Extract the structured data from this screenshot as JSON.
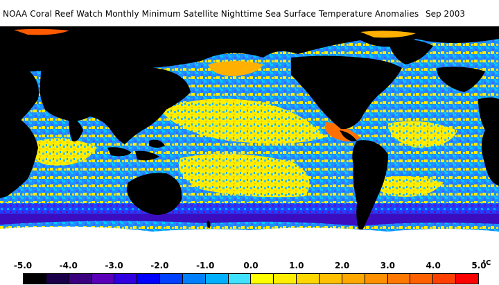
{
  "header": {
    "title": "NOAA Coral Reef Watch Monthly Minimum Satellite Nighttime Sea Surface Temperature Anomalies",
    "date": "Sep 2003"
  },
  "legend": {
    "ticks": [
      "-5.0",
      "-4.0",
      "-3.0",
      "-2.0",
      "-1.0",
      "0.0",
      "1.0",
      "2.0",
      "3.0",
      "4.0",
      "5.0"
    ],
    "unit": "°C",
    "colors": [
      "#000000",
      "#1a0048",
      "#3a0080",
      "#5a00b8",
      "#3000e0",
      "#0000ff",
      "#0040ff",
      "#0080ff",
      "#00b0ff",
      "#40e0ff",
      "#ffff00",
      "#ffee00",
      "#ffd700",
      "#ffc000",
      "#ffa800",
      "#ff9000",
      "#ff7800",
      "#ff6000",
      "#ff4000",
      "#ff0000"
    ]
  },
  "map": {
    "land_color": "#000000",
    "ice_color": "#ffffff",
    "ocean_colors": [
      "#3399ff",
      "#ffee00",
      "#44bbff",
      "#ffd000",
      "#2266ff",
      "#ff8800",
      "#6600cc"
    ]
  }
}
